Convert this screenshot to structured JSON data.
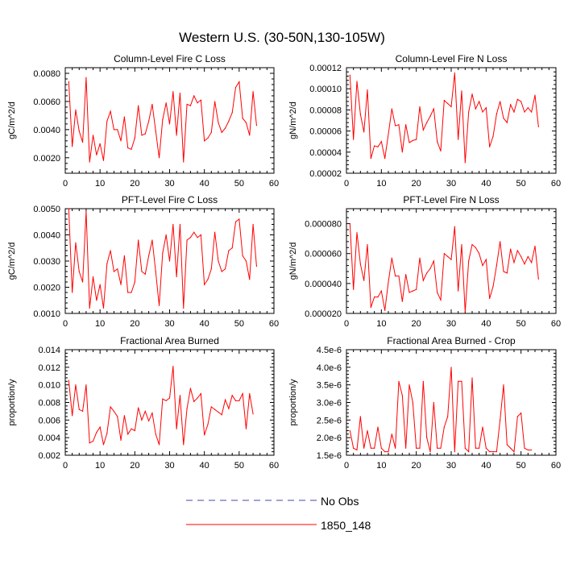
{
  "figure": {
    "title": "Western U.S. (30-50N,130-105W)",
    "line_color": "#ff0000",
    "obs_color": "#4444aa"
  },
  "legend": {
    "placement": "bottom-center",
    "entries": [
      {
        "label": "No Obs",
        "style": "dashed",
        "color": "#4444aa"
      },
      {
        "label": "1850_148",
        "style": "solid",
        "color": "#ff0000"
      }
    ]
  },
  "chart_data": [
    {
      "type": "line",
      "title": "Column-Level Fire C Loss",
      "ylabel": "gC/m^2/d",
      "xlim": [
        0,
        60
      ],
      "ylim": [
        0.0009,
        0.0084
      ],
      "xticks": [
        0,
        10,
        20,
        30,
        40,
        50,
        60
      ],
      "xtick_labels": [
        "0",
        "10",
        "20",
        "30",
        "40",
        "50",
        "60"
      ],
      "yticks": [
        0.002,
        0.004,
        0.006,
        0.008
      ],
      "ytick_labels": [
        "0.0020",
        "0.0040",
        "0.0060",
        "0.0080"
      ],
      "series": [
        {
          "values": [
            0.0074,
            0.0028,
            0.0054,
            0.0039,
            0.0031,
            0.0077,
            0.0017,
            0.0036,
            0.0022,
            0.003,
            0.0018,
            0.0046,
            0.0053,
            0.004,
            0.004,
            0.0032,
            0.0049,
            0.0027,
            0.0026,
            0.0034,
            0.0057,
            0.0036,
            0.0037,
            0.0046,
            0.0058,
            0.0039,
            0.002,
            0.0047,
            0.0059,
            0.0044,
            0.0067,
            0.0036,
            0.0066,
            0.0017,
            0.0058,
            0.0057,
            0.0064,
            0.0059,
            0.0061,
            0.0032,
            0.0034,
            0.0038,
            0.006,
            0.0045,
            0.0038,
            0.0041,
            0.0046,
            0.0052,
            0.007,
            0.0074,
            0.0048,
            0.0045,
            0.0036,
            0.0067,
            0.0043
          ]
        }
      ]
    },
    {
      "type": "line",
      "title": "Column-Level Fire N Loss",
      "ylabel": "gN/m^2/d",
      "xlim": [
        0,
        60
      ],
      "ylim": [
        2e-05,
        0.00012
      ],
      "xticks": [
        0,
        10,
        20,
        30,
        40,
        50,
        60
      ],
      "xtick_labels": [
        "0",
        "10",
        "20",
        "30",
        "40",
        "50",
        "60"
      ],
      "yticks": [
        2e-05,
        4e-05,
        6e-05,
        8e-05,
        0.0001,
        0.00012
      ],
      "ytick_labels": [
        "0.00002",
        "0.00004",
        "0.00006",
        "0.00008",
        "0.00010",
        "0.00012"
      ],
      "series": [
        {
          "values": [
            0.000113,
            5.2e-05,
            0.000107,
            7.6e-05,
            5.9e-05,
            9.9e-05,
            3.4e-05,
            4.6e-05,
            4.5e-05,
            5e-05,
            3.4e-05,
            5.7e-05,
            8.1e-05,
            6.5e-05,
            6.6e-05,
            4e-05,
            6.6e-05,
            4.9e-05,
            5.1e-05,
            5.2e-05,
            8.3e-05,
            6.1e-05,
            6.8e-05,
            7.4e-05,
            8.1e-05,
            5e-05,
            4.1e-05,
            8.9e-05,
            8.6e-05,
            8.3e-05,
            0.000115,
            5.2e-05,
            9.8e-05,
            3e-05,
            7.8e-05,
            9.5e-05,
            8.1e-05,
            8.8e-05,
            7.8e-05,
            8.2e-05,
            4.5e-05,
            5.5e-05,
            7.6e-05,
            8.8e-05,
            7.2e-05,
            6.8e-05,
            8.5e-05,
            7.8e-05,
            9e-05,
            8.8e-05,
            7.8e-05,
            8.2e-05,
            7.8e-05,
            9.4e-05,
            6.4e-05
          ]
        }
      ]
    },
    {
      "type": "line",
      "title": "PFT-Level Fire C Loss",
      "ylabel": "gC/m^2/d",
      "xlim": [
        0,
        60
      ],
      "ylim": [
        0.001,
        0.005
      ],
      "xticks": [
        0,
        10,
        20,
        30,
        40,
        50,
        60
      ],
      "xtick_labels": [
        "0",
        "10",
        "20",
        "30",
        "40",
        "50",
        "60"
      ],
      "yticks": [
        0.001,
        0.002,
        0.003,
        0.004,
        0.005
      ],
      "ytick_labels": [
        "0.0010",
        "0.0020",
        "0.0030",
        "0.0040",
        "0.0050"
      ],
      "series": [
        {
          "values": [
            0.005,
            0.0018,
            0.0037,
            0.0026,
            0.0022,
            0.0049,
            0.0012,
            0.0024,
            0.0015,
            0.0021,
            0.0012,
            0.0029,
            0.0034,
            0.0026,
            0.0027,
            0.0021,
            0.0032,
            0.0018,
            0.0018,
            0.0022,
            0.0038,
            0.0026,
            0.0025,
            0.0032,
            0.0038,
            0.0026,
            0.0013,
            0.0033,
            0.004,
            0.003,
            0.0044,
            0.0024,
            0.0044,
            0.0012,
            0.0038,
            0.0039,
            0.0041,
            0.0039,
            0.004,
            0.0021,
            0.0023,
            0.0027,
            0.0041,
            0.003,
            0.0026,
            0.0027,
            0.0034,
            0.0035,
            0.0045,
            0.0046,
            0.0032,
            0.003,
            0.0023,
            0.0044,
            0.0028
          ]
        }
      ]
    },
    {
      "type": "line",
      "title": "PFT-Level Fire N Loss",
      "ylabel": "gN/m^2/d",
      "xlim": [
        0,
        60
      ],
      "ylim": [
        2e-05,
        9e-05
      ],
      "xticks": [
        0,
        10,
        20,
        30,
        40,
        50,
        60
      ],
      "xtick_labels": [
        "0",
        "10",
        "20",
        "30",
        "40",
        "50",
        "60"
      ],
      "yticks": [
        2e-05,
        4e-05,
        6e-05,
        8e-05
      ],
      "ytick_labels": [
        "0.000020",
        "0.000040",
        "0.000060",
        "0.000080"
      ],
      "series": [
        {
          "values": [
            8e-05,
            3.6e-05,
            7.4e-05,
            5.3e-05,
            4.2e-05,
            6.6e-05,
            2.4e-05,
            3.1e-05,
            3.1e-05,
            3.5e-05,
            2.2e-05,
            4.1e-05,
            5.7e-05,
            4.5e-05,
            4.5e-05,
            2.8e-05,
            4.6e-05,
            3.4e-05,
            3.5e-05,
            3.6e-05,
            5.7e-05,
            4.2e-05,
            4.7e-05,
            5e-05,
            5.5e-05,
            3.4e-05,
            2.9e-05,
            6e-05,
            5.8e-05,
            5.6e-05,
            7.8e-05,
            3.5e-05,
            6.6e-05,
            2.1e-05,
            5.5e-05,
            6.6e-05,
            6.4e-05,
            6e-05,
            5.2e-05,
            5.6e-05,
            3e-05,
            3.8e-05,
            5.2e-05,
            6.8e-05,
            4.8e-05,
            4.7e-05,
            6.3e-05,
            5.4e-05,
            6.2e-05,
            5.8e-05,
            5.3e-05,
            5.8e-05,
            5.4e-05,
            6.5e-05,
            4.3e-05
          ]
        }
      ]
    },
    {
      "type": "line",
      "title": "Fractional Area Burned",
      "ylabel": "proportion/y",
      "xlim": [
        0,
        60
      ],
      "ylim": [
        0.002,
        0.014
      ],
      "xticks": [
        0,
        10,
        20,
        30,
        40,
        50,
        60
      ],
      "xtick_labels": [
        "0",
        "10",
        "20",
        "30",
        "40",
        "50",
        "60"
      ],
      "yticks": [
        0.002,
        0.004,
        0.006,
        0.008,
        0.01,
        0.012,
        0.014
      ],
      "ytick_labels": [
        "0.002",
        "0.004",
        "0.006",
        "0.008",
        "0.010",
        "0.012",
        "0.014"
      ],
      "series": [
        {
          "values": [
            0.0105,
            0.0065,
            0.01,
            0.0072,
            0.007,
            0.01,
            0.0034,
            0.0036,
            0.0046,
            0.0052,
            0.0032,
            0.0045,
            0.0075,
            0.007,
            0.0064,
            0.0037,
            0.0065,
            0.0044,
            0.005,
            0.0048,
            0.0074,
            0.006,
            0.007,
            0.0059,
            0.0068,
            0.0044,
            0.0032,
            0.0084,
            0.0082,
            0.0085,
            0.0121,
            0.005,
            0.0088,
            0.0032,
            0.0073,
            0.0096,
            0.0081,
            0.0085,
            0.009,
            0.0043,
            0.0055,
            0.0075,
            0.0072,
            0.0069,
            0.0066,
            0.0083,
            0.0073,
            0.0088,
            0.0082,
            0.0082,
            0.009,
            0.005,
            0.009,
            0.0067
          ]
        }
      ]
    },
    {
      "type": "line",
      "title": "Fractional Area Burned - Crop",
      "ylabel": "proportion/y",
      "xlim": [
        0,
        60
      ],
      "ylim": [
        1.5e-06,
        4.5e-06
      ],
      "xticks": [
        0,
        10,
        20,
        30,
        40,
        50,
        60
      ],
      "xtick_labels": [
        "0",
        "10",
        "20",
        "30",
        "40",
        "50",
        "60"
      ],
      "yticks": [
        1.5e-06,
        2e-06,
        2.5e-06,
        3e-06,
        3.5e-06,
        4e-06,
        4.5e-06
      ],
      "ytick_labels": [
        "1.5e-6",
        "2.0e-6",
        "2.5e-6",
        "3.0e-6",
        "3.5e-6",
        "4.0e-6",
        "4.5e-6"
      ],
      "series": [
        {
          "values": [
            2.2e-06,
            1.7e-06,
            1.65e-06,
            2.6e-06,
            1.7e-06,
            2.2e-06,
            1.7e-06,
            1.7e-06,
            2.3e-06,
            1.7e-06,
            1.6e-06,
            1.6e-06,
            2.1e-06,
            1.7e-06,
            3.6e-06,
            3.2e-06,
            1.7e-06,
            3.5e-06,
            3e-06,
            1.7e-06,
            1.7e-06,
            3.6e-06,
            2e-06,
            1.6e-06,
            3e-06,
            1.7e-06,
            1.7e-06,
            2.3e-06,
            2.6e-06,
            4e-06,
            1.6e-06,
            3.6e-06,
            3.6e-06,
            1.7e-06,
            1.6e-06,
            3.7e-06,
            1.7e-06,
            1.7e-06,
            2.3e-06,
            1.7e-06,
            1.6e-06,
            1.6e-06,
            1.6e-06,
            2.5e-06,
            3.5e-06,
            1.8e-06,
            1.7e-06,
            1.6e-06,
            2.6e-06,
            2.7e-06,
            1.7e-06,
            1.65e-06,
            1.65e-06
          ]
        }
      ]
    }
  ]
}
